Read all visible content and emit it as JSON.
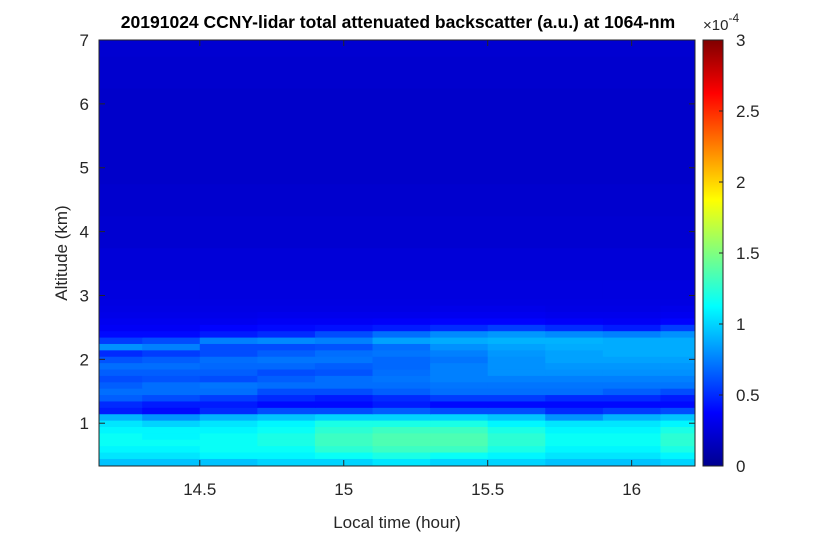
{
  "chart_data": {
    "type": "heatmap",
    "title": "20191024 CCNY-lidar total attenuated backscatter (a.u.) at 1064-nm",
    "xlabel": "Local time (hour)",
    "ylabel": "Altitude (km)",
    "xlim": [
      14.15,
      16.22
    ],
    "ylim": [
      0.33,
      7
    ],
    "xticks": [
      14.5,
      15,
      15.5,
      16
    ],
    "xtick_labels": [
      "14.5",
      "15",
      "15.5",
      "16"
    ],
    "yticks": [
      1,
      2,
      3,
      4,
      5,
      6,
      7
    ],
    "ytick_labels": [
      "1",
      "2",
      "3",
      "4",
      "5",
      "6",
      "7"
    ],
    "colormap": "jet",
    "colorbar": {
      "clim": [
        0,
        3
      ],
      "exponent_label": "×10",
      "exponent_power": "-4",
      "ticks": [
        0,
        0.5,
        1,
        1.5,
        2,
        2.5,
        3
      ],
      "tick_labels": [
        "0",
        "0.5",
        "1",
        "1.5",
        "2",
        "2.5",
        "3"
      ]
    },
    "value_units": "x1e-4 a.u.",
    "x": [
      14.2,
      14.4,
      14.6,
      14.8,
      15.0,
      15.2,
      15.4,
      15.6,
      15.8,
      16.0,
      16.2
    ],
    "y": [
      0.4,
      0.5,
      0.6,
      0.7,
      0.8,
      0.9,
      1.0,
      1.1,
      1.2,
      1.3,
      1.4,
      1.5,
      1.6,
      1.7,
      1.8,
      1.9,
      2.0,
      2.1,
      2.2,
      2.3,
      2.4,
      2.5,
      2.6,
      2.7,
      2.8,
      2.9,
      3.0,
      3.5,
      4.0,
      4.5,
      5.0,
      5.5,
      6.0,
      6.5,
      7.0
    ],
    "z": [
      [
        0.95,
        0.95,
        0.95,
        1.0,
        1.0,
        1.05,
        1.0,
        1.0,
        0.95,
        0.95,
        1.0
      ],
      [
        1.05,
        1.05,
        1.1,
        1.1,
        1.15,
        1.2,
        1.15,
        1.1,
        1.05,
        1.05,
        1.1
      ],
      [
        1.1,
        1.1,
        1.15,
        1.15,
        1.25,
        1.3,
        1.3,
        1.2,
        1.1,
        1.1,
        1.2
      ],
      [
        1.15,
        1.15,
        1.15,
        1.2,
        1.3,
        1.35,
        1.35,
        1.25,
        1.15,
        1.15,
        1.25
      ],
      [
        1.15,
        1.1,
        1.15,
        1.2,
        1.3,
        1.35,
        1.35,
        1.25,
        1.15,
        1.15,
        1.25
      ],
      [
        1.1,
        1.1,
        1.1,
        1.15,
        1.25,
        1.3,
        1.3,
        1.2,
        1.1,
        1.1,
        1.2
      ],
      [
        1.05,
        1.0,
        1.05,
        1.1,
        1.2,
        1.2,
        1.2,
        1.1,
        1.05,
        1.05,
        1.1
      ],
      [
        0.9,
        0.8,
        0.9,
        0.95,
        1.0,
        1.0,
        1.0,
        0.95,
        0.8,
        0.9,
        0.95
      ],
      [
        0.45,
        0.4,
        0.5,
        0.6,
        0.6,
        0.65,
        0.6,
        0.6,
        0.5,
        0.55,
        0.6
      ],
      [
        0.5,
        0.45,
        0.45,
        0.4,
        0.4,
        0.45,
        0.4,
        0.4,
        0.4,
        0.4,
        0.4
      ],
      [
        0.65,
        0.6,
        0.55,
        0.5,
        0.45,
        0.5,
        0.55,
        0.55,
        0.5,
        0.5,
        0.45
      ],
      [
        0.7,
        0.7,
        0.7,
        0.6,
        0.6,
        0.65,
        0.7,
        0.7,
        0.7,
        0.65,
        0.6
      ],
      [
        0.65,
        0.7,
        0.72,
        0.7,
        0.7,
        0.7,
        0.72,
        0.72,
        0.72,
        0.72,
        0.72
      ],
      [
        0.6,
        0.62,
        0.6,
        0.65,
        0.7,
        0.72,
        0.75,
        0.75,
        0.75,
        0.75,
        0.75
      ],
      [
        0.65,
        0.65,
        0.65,
        0.6,
        0.62,
        0.7,
        0.75,
        0.8,
        0.8,
        0.8,
        0.8
      ],
      [
        0.7,
        0.7,
        0.68,
        0.68,
        0.65,
        0.68,
        0.75,
        0.8,
        0.82,
        0.82,
        0.82
      ],
      [
        0.62,
        0.65,
        0.7,
        0.72,
        0.72,
        0.68,
        0.72,
        0.8,
        0.85,
        0.85,
        0.85
      ],
      [
        0.5,
        0.55,
        0.6,
        0.65,
        0.7,
        0.72,
        0.75,
        0.82,
        0.85,
        0.88,
        0.88
      ],
      [
        0.8,
        0.75,
        0.6,
        0.6,
        0.62,
        0.7,
        0.8,
        0.85,
        0.88,
        0.88,
        0.88
      ],
      [
        0.55,
        0.6,
        0.75,
        0.78,
        0.75,
        0.85,
        0.88,
        0.9,
        0.9,
        0.88,
        0.88
      ],
      [
        0.4,
        0.4,
        0.45,
        0.5,
        0.6,
        0.7,
        0.78,
        0.82,
        0.78,
        0.75,
        0.8
      ],
      [
        0.35,
        0.35,
        0.38,
        0.4,
        0.42,
        0.45,
        0.5,
        0.55,
        0.5,
        0.45,
        0.55
      ],
      [
        0.33,
        0.33,
        0.33,
        0.35,
        0.35,
        0.36,
        0.38,
        0.38,
        0.36,
        0.35,
        0.38
      ],
      [
        0.31,
        0.31,
        0.31,
        0.32,
        0.32,
        0.32,
        0.33,
        0.33,
        0.32,
        0.32,
        0.33
      ],
      [
        0.3,
        0.3,
        0.3,
        0.3,
        0.3,
        0.3,
        0.31,
        0.31,
        0.3,
        0.3,
        0.31
      ],
      [
        0.29,
        0.29,
        0.29,
        0.29,
        0.29,
        0.29,
        0.29,
        0.29,
        0.29,
        0.29,
        0.29
      ],
      [
        0.28,
        0.28,
        0.28,
        0.28,
        0.28,
        0.28,
        0.28,
        0.28,
        0.28,
        0.28,
        0.28
      ],
      [
        0.26,
        0.26,
        0.26,
        0.26,
        0.26,
        0.26,
        0.26,
        0.26,
        0.26,
        0.26,
        0.26
      ],
      [
        0.24,
        0.24,
        0.24,
        0.24,
        0.24,
        0.24,
        0.24,
        0.24,
        0.24,
        0.24,
        0.24
      ],
      [
        0.23,
        0.23,
        0.23,
        0.23,
        0.23,
        0.23,
        0.23,
        0.23,
        0.23,
        0.23,
        0.23
      ],
      [
        0.22,
        0.22,
        0.22,
        0.22,
        0.22,
        0.22,
        0.22,
        0.22,
        0.22,
        0.22,
        0.22
      ],
      [
        0.22,
        0.22,
        0.22,
        0.22,
        0.22,
        0.22,
        0.22,
        0.22,
        0.22,
        0.22,
        0.22
      ],
      [
        0.22,
        0.22,
        0.22,
        0.22,
        0.22,
        0.22,
        0.22,
        0.22,
        0.22,
        0.22,
        0.22
      ],
      [
        0.23,
        0.23,
        0.23,
        0.23,
        0.23,
        0.23,
        0.23,
        0.23,
        0.23,
        0.23,
        0.23
      ],
      [
        0.24,
        0.24,
        0.24,
        0.24,
        0.24,
        0.24,
        0.24,
        0.24,
        0.24,
        0.24,
        0.24
      ]
    ]
  }
}
